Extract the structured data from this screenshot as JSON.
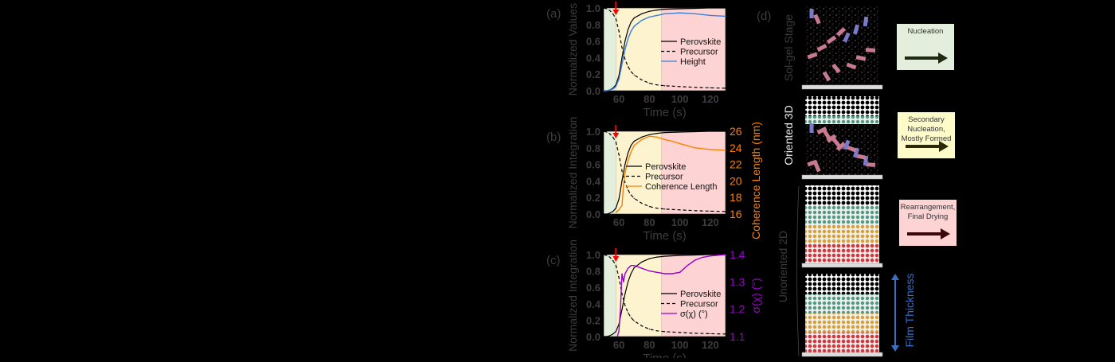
{
  "colors": {
    "background": "#000000",
    "axis_text": "#3c3c3c",
    "green_region": "#e3efdc",
    "yellow_region": "#fdf3cf",
    "pink_region": "#fdd3d3",
    "arrow": "#ff0000",
    "height": "#3a7fdc",
    "coherence": "#ff8000",
    "sigma": "#9a00cc",
    "film_arrow": "#3a6fc0"
  },
  "chart_data": [
    {
      "type": "line",
      "panel_label": "(a)",
      "xlabel": "Time (s)",
      "ylabel": "Normalized Values",
      "xlim": [
        50,
        130
      ],
      "ylim": [
        0,
        1
      ],
      "xticks": [
        60,
        80,
        100,
        120
      ],
      "yticks": [
        0.0,
        0.2,
        0.4,
        0.6,
        0.8,
        1.0
      ],
      "regions": [
        {
          "from": 50,
          "to": 58,
          "color": "#e3efdc"
        },
        {
          "from": 58,
          "to": 88,
          "color": "#fdf3cf"
        },
        {
          "from": 88,
          "to": 130,
          "color": "#fdd3d3"
        }
      ],
      "arrow_at": 58,
      "x": [
        50,
        52,
        54,
        56,
        58,
        60,
        62,
        64,
        66,
        68,
        70,
        75,
        80,
        85,
        90,
        100,
        110,
        120,
        130
      ],
      "series": [
        {
          "name": "Perovskite",
          "style": "solid",
          "color": "#000000",
          "values": [
            0,
            0,
            0.01,
            0.03,
            0.07,
            0.18,
            0.4,
            0.6,
            0.74,
            0.83,
            0.88,
            0.93,
            0.96,
            0.975,
            0.985,
            0.99,
            0.995,
            1,
            1
          ]
        },
        {
          "name": "Precursor",
          "style": "dashed",
          "color": "#000000",
          "values": [
            1,
            0.99,
            0.97,
            0.93,
            0.87,
            0.72,
            0.52,
            0.38,
            0.29,
            0.23,
            0.19,
            0.13,
            0.09,
            0.07,
            0.06,
            0.05,
            0.04,
            0.035,
            0.03
          ]
        },
        {
          "name": "Height",
          "style": "solid",
          "color": "#3a7fdc",
          "values": [
            0,
            0,
            0.01,
            0.02,
            0.05,
            0.14,
            0.32,
            0.5,
            0.63,
            0.72,
            0.78,
            0.85,
            0.89,
            0.91,
            0.93,
            0.94,
            0.93,
            0.91,
            0.9
          ]
        }
      ]
    },
    {
      "type": "line",
      "panel_label": "(b)",
      "xlabel": "Time (s)",
      "ylabel": "Normalized Integration",
      "xlim": [
        50,
        130
      ],
      "ylim": [
        0,
        1
      ],
      "xticks": [
        60,
        80,
        100,
        120
      ],
      "yticks": [
        0.0,
        0.2,
        0.4,
        0.6,
        0.8,
        1.0
      ],
      "regions": [
        {
          "from": 50,
          "to": 58,
          "color": "#e3efdc"
        },
        {
          "from": 58,
          "to": 88,
          "color": "#fdf3cf"
        },
        {
          "from": 88,
          "to": 130,
          "color": "#fdd3d3"
        }
      ],
      "arrow_at": 58,
      "x": [
        50,
        52,
        54,
        56,
        58,
        60,
        62,
        64,
        66,
        68,
        70,
        75,
        80,
        85,
        90,
        100,
        110,
        120,
        130
      ],
      "series": [
        {
          "name": "Perovskite",
          "style": "solid",
          "color": "#000000",
          "values": [
            0,
            0,
            0.01,
            0.03,
            0.07,
            0.18,
            0.4,
            0.6,
            0.74,
            0.83,
            0.88,
            0.93,
            0.96,
            0.975,
            0.985,
            0.99,
            0.995,
            1,
            1
          ]
        },
        {
          "name": "Precursor",
          "style": "dashed",
          "color": "#000000",
          "values": [
            1,
            0.99,
            0.97,
            0.93,
            0.87,
            0.72,
            0.52,
            0.38,
            0.29,
            0.23,
            0.19,
            0.13,
            0.09,
            0.07,
            0.06,
            0.05,
            0.04,
            0.035,
            0.03
          ]
        }
      ],
      "right_axis": {
        "label": "Coherence Length (nm)",
        "ylim": [
          16,
          26
        ],
        "yticks": [
          16,
          18,
          20,
          22,
          24,
          26
        ],
        "color": "#ff8000",
        "series": {
          "name": "Coherence Length",
          "x": [
            58,
            60,
            61,
            62,
            63,
            64,
            66,
            68,
            70,
            75,
            80,
            85,
            90,
            95,
            100,
            110,
            120,
            130
          ],
          "values": [
            16.2,
            16.5,
            16.8,
            17,
            19.5,
            21,
            22.5,
            23.5,
            24.3,
            25,
            25.4,
            25.3,
            25,
            24.8,
            24.5,
            24,
            23.8,
            23.7
          ]
        }
      }
    },
    {
      "type": "line",
      "panel_label": "(c)",
      "xlabel": "Time (s)",
      "ylabel": "Normalized Integration",
      "xlim": [
        50,
        130
      ],
      "ylim": [
        0,
        1
      ],
      "xticks": [
        60,
        80,
        100,
        120
      ],
      "yticks": [
        0.0,
        0.2,
        0.4,
        0.6,
        0.8,
        1.0
      ],
      "regions": [
        {
          "from": 50,
          "to": 58,
          "color": "#e3efdc"
        },
        {
          "from": 58,
          "to": 88,
          "color": "#fdf3cf"
        },
        {
          "from": 88,
          "to": 130,
          "color": "#fdd3d3"
        }
      ],
      "arrow_at": 58,
      "x": [
        50,
        52,
        54,
        56,
        58,
        60,
        62,
        64,
        66,
        68,
        70,
        75,
        80,
        85,
        90,
        100,
        110,
        120,
        130
      ],
      "series": [
        {
          "name": "Perovskite",
          "style": "solid",
          "color": "#000000",
          "values": [
            0,
            0,
            0.01,
            0.03,
            0.06,
            0.15,
            0.33,
            0.52,
            0.67,
            0.77,
            0.84,
            0.91,
            0.95,
            0.97,
            0.98,
            0.99,
            0.995,
            1,
            1
          ]
        },
        {
          "name": "Precursor",
          "style": "dashed",
          "color": "#000000",
          "values": [
            1,
            0.99,
            0.97,
            0.93,
            0.87,
            0.72,
            0.52,
            0.38,
            0.29,
            0.23,
            0.19,
            0.13,
            0.09,
            0.07,
            0.06,
            0.05,
            0.04,
            0.035,
            0.03
          ]
        }
      ],
      "right_axis": {
        "label": "σ(χ) (°)",
        "ylim": [
          1.1,
          1.4
        ],
        "yticks": [
          1.1,
          1.2,
          1.3,
          1.4
        ],
        "color": "#9a00cc",
        "series": {
          "name": "σ(χ) (°)",
          "x": [
            59,
            60,
            61,
            62,
            63,
            64,
            66,
            68,
            70,
            75,
            80,
            85,
            90,
            95,
            100,
            105,
            110,
            115,
            120,
            130
          ],
          "values": [
            1.1,
            1.12,
            1.2,
            1.33,
            1.3,
            1.33,
            1.35,
            1.36,
            1.36,
            1.35,
            1.34,
            1.335,
            1.33,
            1.33,
            1.335,
            1.36,
            1.38,
            1.39,
            1.395,
            1.4
          ]
        }
      }
    }
  ],
  "schematic": {
    "panel_label": "(d)",
    "stage_labels": [
      "Sol-gel Stage",
      "Oriented 3D",
      "Unoriented 2D"
    ],
    "steps": [
      {
        "lines": [
          "Nucleation"
        ],
        "color": "#e3efdc",
        "arrow_color": "#1c2a14"
      },
      {
        "lines": [
          "Secondary",
          "Nucleation,",
          "Mostly Formed"
        ],
        "color": "#fdfbc8",
        "arrow_color": "#2a2a0a"
      },
      {
        "lines": [
          "Rearrangement,",
          "Final Drying"
        ],
        "color": "#fdd3d3",
        "arrow_color": "#3a0808"
      }
    ],
    "film_thickness_label": "Film Thickness"
  }
}
